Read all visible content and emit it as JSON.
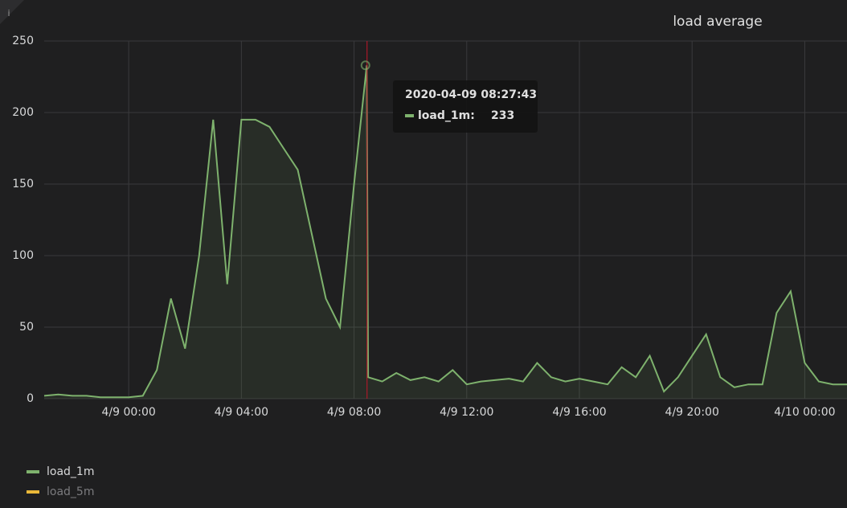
{
  "chart_data": {
    "type": "line",
    "title": "load average",
    "x": [
      "4/8 21:00",
      "4/8 21:30",
      "4/8 22:00",
      "4/8 22:30",
      "4/8 23:00",
      "4/8 23:30",
      "4/9 00:00",
      "4/9 00:30",
      "4/9 01:00",
      "4/9 01:30",
      "4/9 02:00",
      "4/9 02:30",
      "4/9 03:00",
      "4/9 03:30",
      "4/9 04:00",
      "4/9 04:30",
      "4/9 05:00",
      "4/9 05:30",
      "4/9 06:00",
      "4/9 06:30",
      "4/9 07:00",
      "4/9 07:30",
      "4/9 08:00",
      "4/9 08:27",
      "4/9 08:30",
      "4/9 09:00",
      "4/9 09:30",
      "4/9 10:00",
      "4/9 10:30",
      "4/9 11:00",
      "4/9 11:30",
      "4/9 12:00",
      "4/9 12:30",
      "4/9 13:00",
      "4/9 13:30",
      "4/9 14:00",
      "4/9 14:30",
      "4/9 15:00",
      "4/9 15:30",
      "4/9 16:00",
      "4/9 16:30",
      "4/9 17:00",
      "4/9 17:30",
      "4/9 18:00",
      "4/9 18:30",
      "4/9 19:00",
      "4/9 19:30",
      "4/9 20:00",
      "4/9 20:30",
      "4/9 21:00",
      "4/9 21:30",
      "4/9 22:00",
      "4/9 22:30",
      "4/9 23:00",
      "4/9 23:30",
      "4/10 00:00",
      "4/10 00:30",
      "4/10 01:00",
      "4/10 01:30"
    ],
    "series": [
      {
        "name": "load_1m",
        "color": "#7eb26d",
        "values": [
          2,
          3,
          2,
          2,
          1,
          1,
          1,
          2,
          20,
          70,
          35,
          100,
          195,
          80,
          195,
          195,
          190,
          175,
          160,
          115,
          70,
          50,
          150,
          233,
          15,
          12,
          18,
          13,
          15,
          12,
          20,
          10,
          12,
          13,
          14,
          12,
          25,
          15,
          12,
          14,
          12,
          10,
          22,
          15,
          30,
          5,
          15,
          30,
          45,
          15,
          8,
          10,
          10,
          60,
          75,
          25,
          12,
          10,
          10
        ]
      },
      {
        "name": "load_5m",
        "color": "#eab839",
        "values": [
          null,
          null,
          null,
          null,
          null,
          null,
          null,
          null,
          null,
          null,
          null,
          null,
          null,
          null,
          null,
          null,
          null,
          null,
          null,
          null,
          null,
          null,
          null,
          null,
          null,
          null,
          null,
          null,
          null,
          null,
          null,
          null,
          null,
          null,
          null,
          null,
          null,
          null,
          null,
          null,
          null,
          null,
          null,
          null,
          null,
          null,
          null,
          null,
          null,
          null,
          null,
          null,
          null,
          null,
          null,
          null,
          null,
          null,
          null
        ]
      }
    ],
    "xlim": [
      "4/8 21:00",
      "4/10 01:30"
    ],
    "xticks": [
      "4/9 00:00",
      "4/9 04:00",
      "4/9 08:00",
      "4/9 12:00",
      "4/9 16:00",
      "4/9 20:00",
      "4/10 00:00"
    ],
    "ylim": [
      0,
      250
    ],
    "yticks": [
      0,
      50,
      100,
      150,
      200,
      250
    ],
    "grid": true,
    "tooltip": {
      "time": "2020-04-09 08:27:43",
      "series": "load_1m:",
      "value": 233
    }
  }
}
